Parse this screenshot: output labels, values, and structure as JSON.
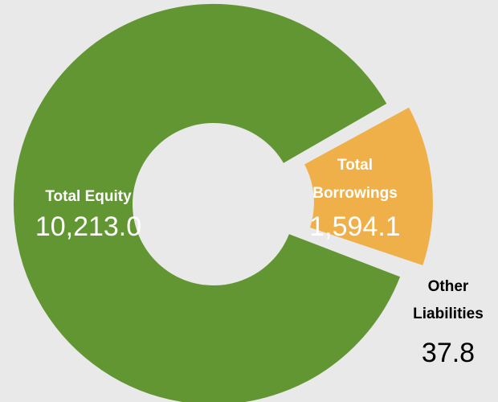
{
  "chart_data": {
    "type": "pie",
    "subtype": "donut",
    "title": "",
    "categories": [
      "Total Equity",
      "Total Borrowings",
      "Other Liabilities"
    ],
    "values": [
      10213.0,
      1594.1,
      37.8
    ],
    "value_labels": [
      "10,213.0",
      "1,594.1",
      "37.8"
    ],
    "label_lines": [
      [
        "Total Equity"
      ],
      [
        "Total",
        "Borrowings"
      ],
      [
        "Other",
        "Liabilities"
      ]
    ],
    "colors": [
      "#629632",
      "#efb04a",
      "#8fb4d9"
    ],
    "exploded": [
      false,
      true,
      true
    ],
    "legend": "none",
    "background": "#e9e9e9"
  }
}
